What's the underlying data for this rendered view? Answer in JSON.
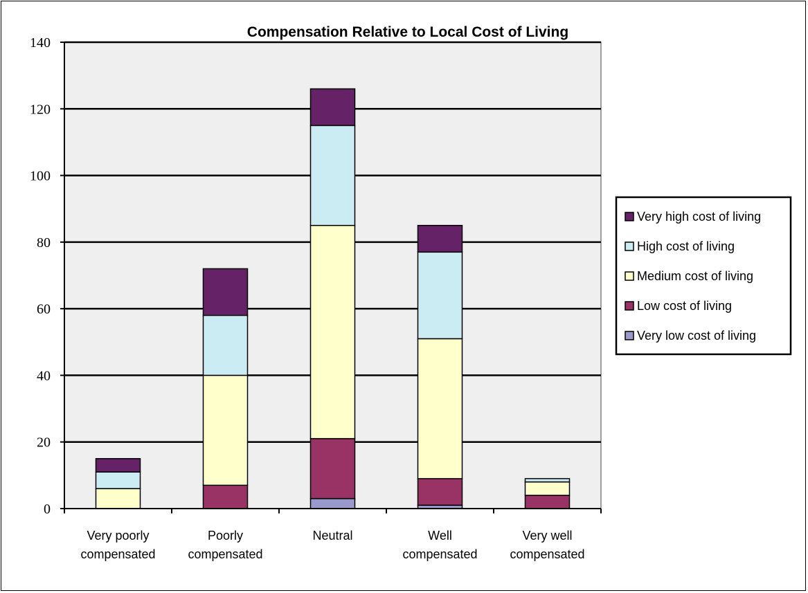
{
  "chart_data": {
    "type": "bar",
    "stacked": true,
    "title": "Compensation Relative to Local Cost of Living",
    "xlabel": "",
    "ylabel": "",
    "ylim": [
      0,
      140
    ],
    "yticks": [
      "0",
      "20",
      "40",
      "60",
      "80",
      "100",
      "120",
      "140"
    ],
    "grid": true,
    "legend_position": "right",
    "categories": [
      [
        "Very poorly",
        "compensated"
      ],
      [
        "Poorly",
        "compensated"
      ],
      [
        "Neutral"
      ],
      [
        "Well",
        "compensated"
      ],
      [
        "Very well",
        "compensated"
      ]
    ],
    "series": [
      {
        "name": "Very low cost of living",
        "color": "#9999CC",
        "values": [
          0,
          0,
          3,
          1,
          0
        ]
      },
      {
        "name": "Low cost of living",
        "color": "#993366",
        "values": [
          0,
          7,
          18,
          8,
          4
        ]
      },
      {
        "name": "Medium cost of living",
        "color": "#FFFFCC",
        "values": [
          6,
          33,
          64,
          42,
          4
        ]
      },
      {
        "name": "High cost of living",
        "color": "#CCECF4",
        "values": [
          5,
          18,
          30,
          26,
          1
        ]
      },
      {
        "name": "Very high cost of living",
        "color": "#662266",
        "values": [
          4,
          14,
          11,
          8,
          0
        ]
      }
    ],
    "plot_background": "#EFEFEF"
  }
}
